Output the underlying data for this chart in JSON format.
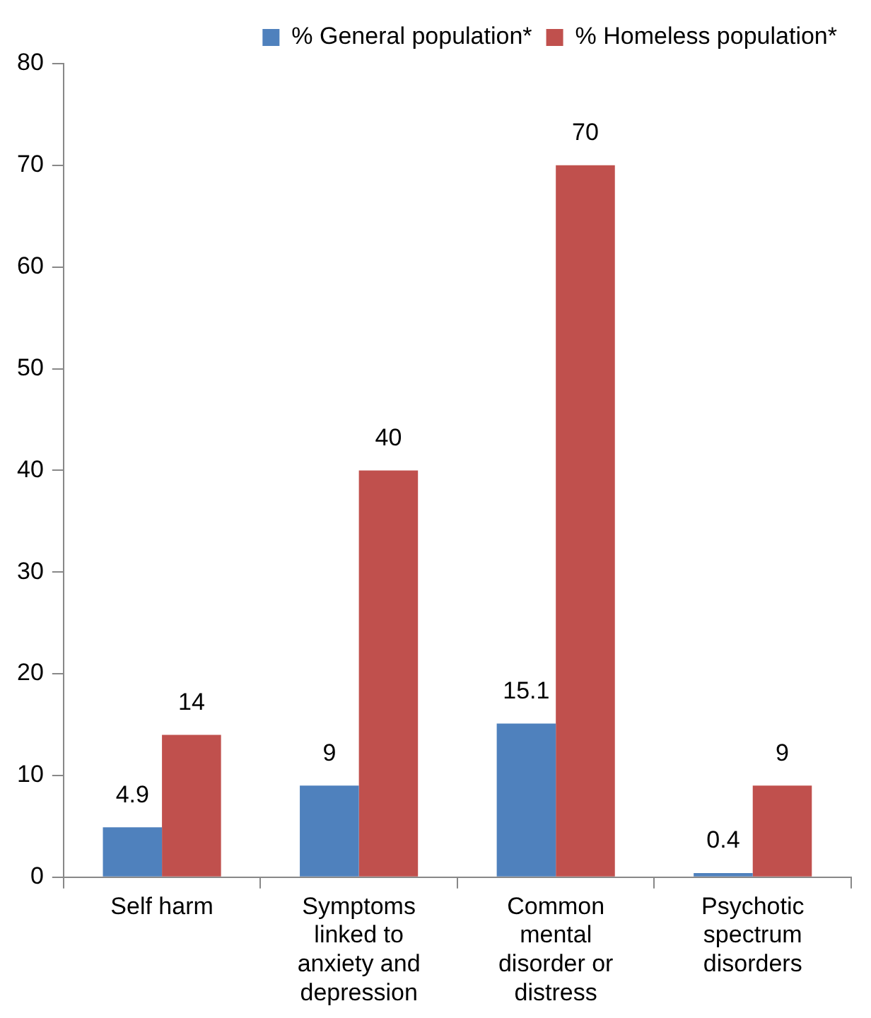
{
  "chart_data": {
    "type": "bar",
    "categories": [
      "Self harm",
      "Symptoms linked to anxiety and depression",
      "Common mental disorder or distress",
      "Psychotic spectrum disorders"
    ],
    "series": [
      {
        "name": "% General population*",
        "color": "#4f81bd",
        "values": [
          4.9,
          9,
          15.1,
          0.4
        ]
      },
      {
        "name": "% Homeless population*",
        "color": "#c0504d",
        "values": [
          14,
          40,
          70,
          9
        ]
      }
    ],
    "ylim": [
      0,
      80
    ],
    "yticks": [
      0,
      10,
      20,
      30,
      40,
      50,
      60,
      70,
      80
    ],
    "grid": false,
    "legend": "top",
    "data_labels": true
  }
}
